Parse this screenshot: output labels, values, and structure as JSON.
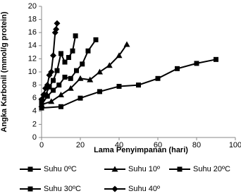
{
  "chart_data": {
    "type": "line",
    "x_label": "Lama Penyimpanan (hari)",
    "y_label": "Angka Karbonil (mmol/g protein)",
    "xlim": [
      0,
      100
    ],
    "xticks": [
      0,
      20,
      40,
      60,
      80,
      100
    ],
    "ylim": [
      0,
      20
    ],
    "yticks": [
      0,
      2,
      4,
      6,
      8,
      10,
      12,
      14,
      16,
      18,
      20
    ],
    "grid": false,
    "legend": "bottom",
    "series": [
      {
        "name": "Suhu 0ºC",
        "color": "#000000",
        "marker": "square",
        "x": [
          0,
          10,
          20,
          30,
          40,
          50,
          60,
          70,
          80,
          90
        ],
        "values": [
          4.5,
          4.7,
          6,
          7,
          7.8,
          8,
          9,
          10.5,
          11.3,
          11.9
        ]
      },
      {
        "name": "Suhu 10º",
        "color": "#000000",
        "marker": "triangle",
        "x": [
          0,
          5,
          10,
          15,
          20,
          25,
          30,
          35,
          40,
          44
        ],
        "values": [
          5,
          5.5,
          6.5,
          7.5,
          9,
          8.8,
          10,
          11,
          12.5,
          14.2
        ]
      },
      {
        "name": "Suhu 20ºC",
        "color": "#000000",
        "marker": "square",
        "x": [
          0,
          3,
          6,
          9,
          12,
          15,
          18,
          21,
          24,
          28
        ],
        "values": [
          5,
          6.3,
          7.2,
          8,
          9.2,
          9,
          10.2,
          11.2,
          13.2,
          14.9
        ]
      },
      {
        "name": "Suhu 30ºC",
        "color": "#000000",
        "marker": "square",
        "x": [
          0,
          2,
          4,
          6,
          8,
          10,
          12,
          14,
          16,
          17.5
        ],
        "values": [
          5.5,
          6.5,
          7.7,
          8.7,
          10.2,
          12.8,
          11.5,
          12.2,
          13.2,
          15.5
        ]
      },
      {
        "name": "Suhu 40º",
        "color": "#000000",
        "marker": "diamond",
        "x": [
          0,
          1,
          2,
          3,
          4,
          5,
          6,
          7,
          7.5,
          8
        ],
        "values": [
          5.8,
          6.5,
          7.5,
          8,
          9.5,
          10,
          12.5,
          16,
          16.5,
          17.4
        ]
      }
    ]
  }
}
